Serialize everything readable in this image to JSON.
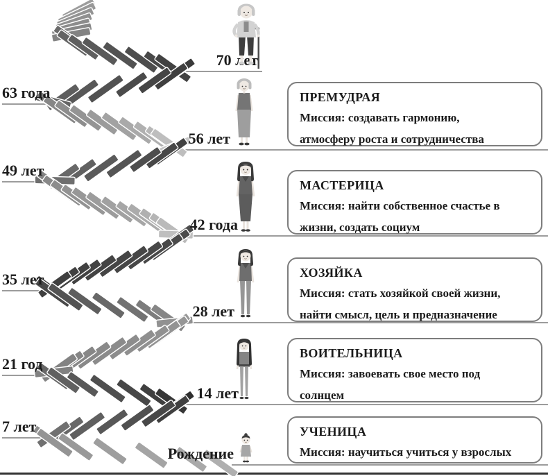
{
  "diagram": {
    "left_ages": [
      "63 года",
      "49 лет",
      "35 лет",
      "21 год",
      "7 лет"
    ],
    "timeline_ages": [
      "70 лет",
      "56 лет",
      "42 года",
      "28 лет",
      "14 лет",
      "Рождение"
    ],
    "stages": [
      {
        "title": "ПРЕМУДРАЯ",
        "mission_lines": [
          "Миссия: создавать гармонию,",
          "атмосферу роста и сотрудничества"
        ]
      },
      {
        "title": "МАСТЕРИЦА",
        "mission_lines": [
          "Миссия: найти собственное счастье в",
          "жизни, создать социум"
        ]
      },
      {
        "title": "ХОЗЯЙКА",
        "mission_lines": [
          "Миссия: стать хозяйкой своей жизни,",
          "найти смысл, цель и предназначение"
        ]
      },
      {
        "title": "ВОИТЕЛЬНИЦА",
        "mission_lines": [
          "Миссия: завоевать свое место под",
          "солнцем"
        ]
      },
      {
        "title": "УЧЕНИЦА",
        "mission_lines": [
          "Миссия: научиться учиться у взрослых"
        ]
      }
    ],
    "figures": [
      {
        "name": "elderly-woman-with-cane",
        "age": "70 лет"
      },
      {
        "name": "mature-woman",
        "age": "56 лет"
      },
      {
        "name": "adult-woman",
        "age": "42 года"
      },
      {
        "name": "young-woman",
        "age": "28 лет"
      },
      {
        "name": "teen-girl",
        "age": "14 лет"
      },
      {
        "name": "little-girl",
        "age": "Рождение"
      }
    ],
    "colors": {
      "line": "#9c9c9c",
      "bottom_line": "#333333",
      "text": "#1c1c1c",
      "box_border": "#7d7d7d",
      "step_dark": "#2e2e2e",
      "step_light": "#c6c6c6"
    }
  }
}
